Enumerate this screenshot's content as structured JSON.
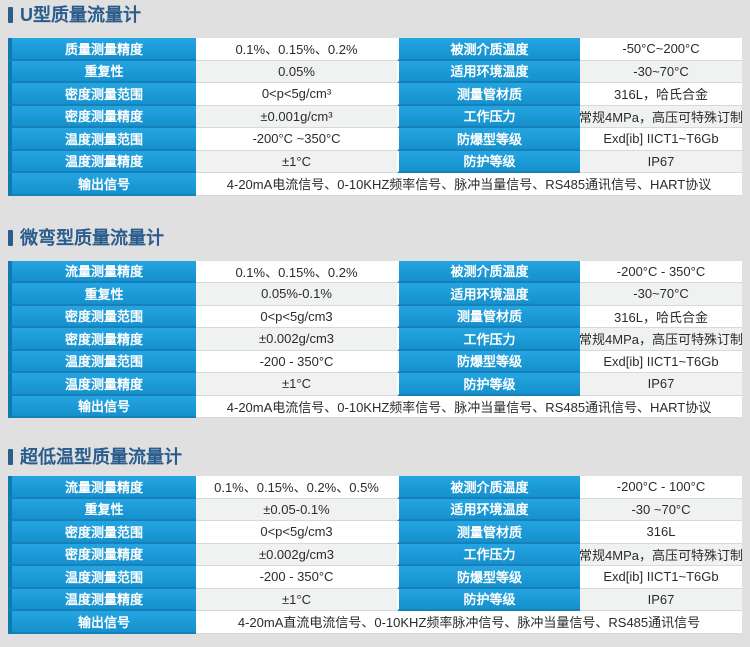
{
  "page": {
    "background": "#e0e0e1",
    "accent_blue": "#1b9ad6",
    "blue_separator": "#1581b8",
    "title_color": "#2b5d8c"
  },
  "sections": [
    {
      "title": "U型质量流量计",
      "rows": [
        {
          "l1": "质量测量精度",
          "v1": "0.1%、0.15%、0.2%",
          "l2": "被测介质温度",
          "v2": "-50°C~200°C"
        },
        {
          "l1": "重复性",
          "v1": "0.05%",
          "l2": "适用环境温度",
          "v2": "-30~70°C"
        },
        {
          "l1": "密度测量范围",
          "v1": "0<p<5g/cm³",
          "l2": "测量管材质",
          "v2": "316L，哈氏合金"
        },
        {
          "l1": "密度测量精度",
          "v1": "±0.001g/cm³",
          "l2": "工作压力",
          "v2": "常规4MPa，高压可特殊订制"
        },
        {
          "l1": "温度测量范围",
          "v1": "-200°C ~350°C",
          "l2": "防爆型等级",
          "v2": "Exd[ib] IICT1~T6Gb"
        },
        {
          "l1": "温度测量精度",
          "v1": "±1°C",
          "l2": "防护等级",
          "v2": "IP67"
        },
        {
          "l1": "输出信号",
          "v1": "4-20mA电流信号、0-10KHZ频率信号、脉冲当量信号、RS485通讯信号、HART协议"
        }
      ]
    },
    {
      "title": "微弯型质量流量计",
      "rows": [
        {
          "l1": "流量测量精度",
          "v1": "0.1%、0.15%、0.2%",
          "l2": "被测介质温度",
          "v2": "-200°C - 350°C"
        },
        {
          "l1": "重复性",
          "v1": "0.05%-0.1%",
          "l2": "适用环境温度",
          "v2": "-30~70°C"
        },
        {
          "l1": "密度测量范围",
          "v1": "0<p<5g/cm3",
          "l2": "测量管材质",
          "v2": "316L，哈氏合金"
        },
        {
          "l1": "密度测量精度",
          "v1": "±0.002g/cm3",
          "l2": "工作压力",
          "v2": "常规4MPa，高压可特殊订制"
        },
        {
          "l1": "温度测量范围",
          "v1": "-200 - 350°C",
          "l2": "防爆型等级",
          "v2": "Exd[ib] IICT1~T6Gb"
        },
        {
          "l1": "温度测量精度",
          "v1": "±1°C",
          "l2": "防护等级",
          "v2": "IP67"
        },
        {
          "l1": "输出信号",
          "v1": "4-20mA电流信号、0-10KHZ频率信号、脉冲当量信号、RS485通讯信号、HART协议"
        }
      ]
    },
    {
      "title": "超低温型质量流量计",
      "rows": [
        {
          "l1": "流量测量精度",
          "v1": "0.1%、0.15%、0.2%、0.5%",
          "l2": "被测介质温度",
          "v2": "-200°C - 100°C"
        },
        {
          "l1": "重复性",
          "v1": "±0.05-0.1%",
          "l2": "适用环境温度",
          "v2": "-30 ~70°C"
        },
        {
          "l1": "密度测量范围",
          "v1": "0<p<5g/cm3",
          "l2": "测量管材质",
          "v2": "316L"
        },
        {
          "l1": "密度测量精度",
          "v1": "±0.002g/cm3",
          "l2": "工作压力",
          "v2": "常规4MPa，高压可特殊订制"
        },
        {
          "l1": "温度测量范围",
          "v1": "-200 - 350°C",
          "l2": "防爆型等级",
          "v2": "Exd[ib] IICT1~T6Gb"
        },
        {
          "l1": "温度测量精度",
          "v1": "±1°C",
          "l2": "防护等级",
          "v2": "IP67"
        },
        {
          "l1": "输出信号",
          "v1": "4-20mA直流电流信号、0-10KHZ频率脉冲信号、脉冲当量信号、RS485通讯信号"
        }
      ]
    }
  ]
}
